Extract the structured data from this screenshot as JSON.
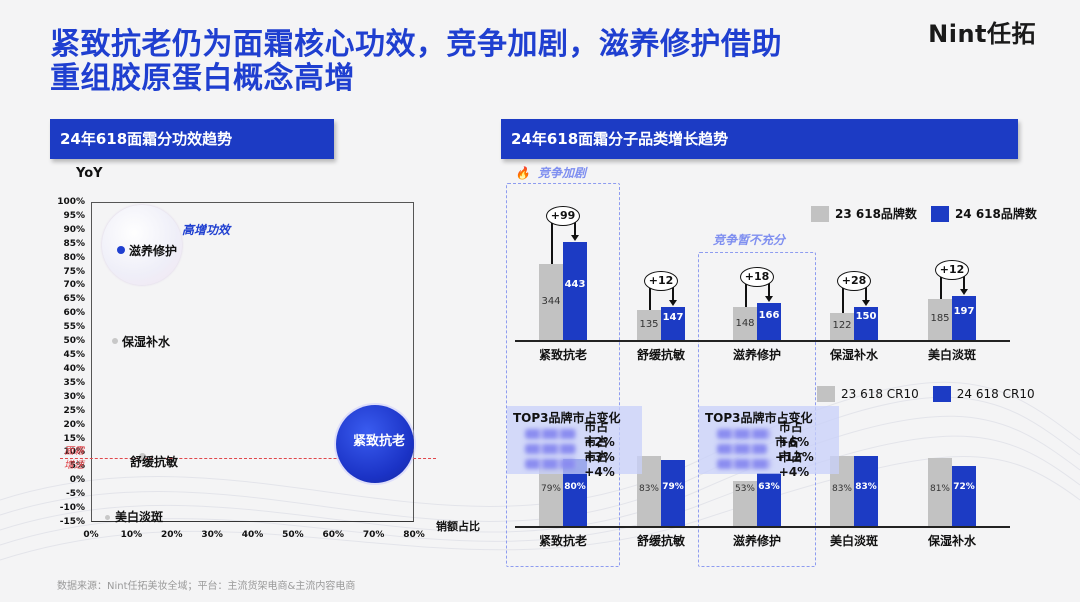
{
  "title": {
    "line1": "紧致抗老仍为面霜核心功效，竞争加剧，滋养修护借助",
    "line2": "重组胶原蛋白概念高增"
  },
  "logo": "Nint任拓",
  "left_section": {
    "title": "24年618面霜分功效趋势"
  },
  "right_section": {
    "title": "24年618面霜分子品类增长趋势"
  },
  "source": "数据来源：Nint任拓美妆全域；平台：主流货架电商&主流内容电商",
  "chart_data": [
    {
      "type": "scatter",
      "title": "24年618面霜分功效趋势",
      "xlabel": "销额占比",
      "ylabel": "YoY",
      "xlim": [
        0,
        80
      ],
      "ylim": [
        -15,
        100
      ],
      "x_ticks": [
        "0%",
        "10%",
        "20%",
        "30%",
        "40%",
        "50%",
        "60%",
        "70%",
        "80%"
      ],
      "y_ticks": [
        "100%",
        "95%",
        "90%",
        "85%",
        "80%",
        "75%",
        "70%",
        "65%",
        "60%",
        "55%",
        "50%",
        "45%",
        "40%",
        "35%",
        "30%",
        "25%",
        "20%",
        "15%",
        "10%",
        "5%",
        "0%",
        "-5%",
        "-10%",
        "-15%"
      ],
      "points": [
        {
          "name": "滋养修护",
          "x": 7,
          "y": 83
        },
        {
          "name": "保湿补水",
          "x": 6,
          "y": 51
        },
        {
          "name": "舒缓抗敏",
          "x": 12,
          "y": 10
        },
        {
          "name": "美白淡斑",
          "x": 4,
          "y": -12
        },
        {
          "name": "紧致抗老",
          "x": 70,
          "y": 15
        }
      ],
      "reference_line": {
        "label": "面霜增速",
        "y": 9
      },
      "annotations": [
        "高增功效"
      ]
    },
    {
      "type": "bar",
      "title": "24年618面霜分子品类增长趋势 - 品牌数",
      "categories": [
        "紧致抗老",
        "舒缓抗敏",
        "滋养修护",
        "保湿补水",
        "美白淡斑"
      ],
      "series": [
        {
          "name": "23 618品牌数",
          "values": [
            344,
            135,
            148,
            122,
            185
          ]
        },
        {
          "name": "24 618品牌数",
          "values": [
            443,
            147,
            166,
            150,
            197
          ]
        }
      ],
      "deltas": [
        "+99",
        "+12",
        "+18",
        "+28",
        "+12"
      ],
      "annotations": [
        "竞争加剧",
        "竞争暂不充分"
      ]
    },
    {
      "type": "bar",
      "title": "24年618面霜分子品类增长趋势 - CR10",
      "categories": [
        "紧致抗老",
        "舒缓抗敏",
        "滋养修护",
        "美白淡斑",
        "保湿补水"
      ],
      "series": [
        {
          "name": "23 618 CR10",
          "values": [
            79,
            83,
            53,
            83,
            81
          ]
        },
        {
          "name": "24 618 CR10",
          "values": [
            80,
            79,
            63,
            83,
            72
          ]
        }
      ],
      "value_labels": {
        "s23": [
          "79%",
          "83%",
          "53%",
          "83%",
          "81%"
        ],
        "s24": [
          "80%",
          "79%",
          "63%",
          "83%",
          "72%"
        ]
      }
    }
  ],
  "scatter": {
    "yoy_label": "YoY",
    "x_label": "销额占比",
    "hi_annot": "高增功效",
    "avg_label_1": "面霜",
    "avg_label_2": "增速",
    "big_bubble_label": "紧致抗老",
    "pts": {
      "p1": "滋养修护",
      "p2": "保湿补水",
      "p3": "舒缓抗敏",
      "p4": "美白淡斑"
    }
  },
  "bars_top": {
    "legend_a": "23 618品牌数",
    "legend_b": "24 618品牌数",
    "tag_hot": "竞争加剧",
    "tag_open": "竞争暂不充分",
    "cats": [
      "紧致抗老",
      "舒缓抗敏",
      "滋养修护",
      "保湿补水",
      "美白淡斑"
    ],
    "a": [
      "344",
      "135",
      "148",
      "122",
      "185"
    ],
    "b": [
      "443",
      "147",
      "166",
      "150",
      "197"
    ],
    "d": [
      "+99",
      "+12",
      "+18",
      "+28",
      "+12"
    ]
  },
  "bars_bottom": {
    "legend_a": "23 618 CR10",
    "legend_b": "24 618 CR10",
    "cats": [
      "紧致抗老",
      "舒缓抗敏",
      "滋养修护",
      "美白淡斑",
      "保湿补水"
    ],
    "a": [
      "79%",
      "83%",
      "53%",
      "83%",
      "81%"
    ],
    "b": [
      "80%",
      "79%",
      "63%",
      "83%",
      "72%"
    ],
    "top3_title": "TOP3品牌市占变化",
    "top3_left": [
      "市占+2%",
      "市占+3%",
      "市占+4%"
    ],
    "top3_right": [
      "市占+6%",
      "市占+12%",
      "市占+4%"
    ]
  },
  "colors": {
    "brand_blue": "#1c3bc4",
    "gray": "#c2c2c2",
    "ref_red": "#e0474c",
    "tag_purple": "#7f8ff0"
  }
}
